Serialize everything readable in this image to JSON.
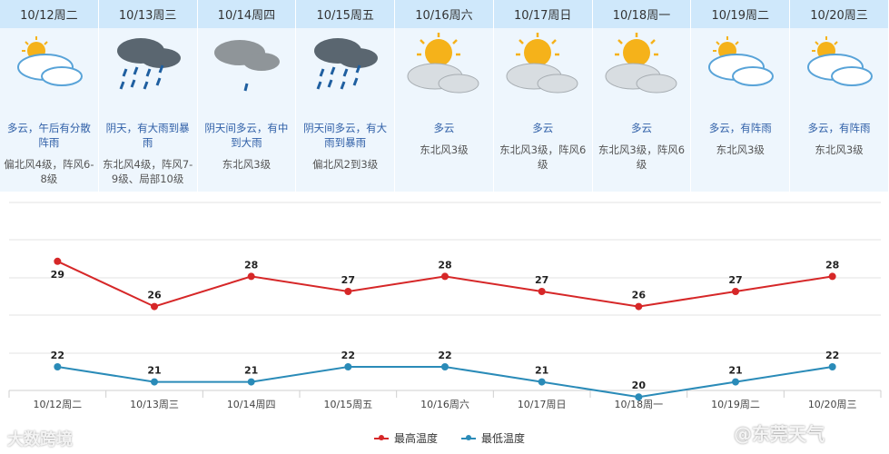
{
  "days": [
    {
      "date": "10/12周二",
      "icon": "partly-cloudy-icon",
      "desc": "多云，午后有分散阵雨",
      "wind": "偏北风4级，阵风6-8级"
    },
    {
      "date": "10/13周三",
      "icon": "heavy-rain-icon",
      "desc": "阴天，有大雨到暴雨",
      "wind": "东北风4级，阵风7-9级、局部10级"
    },
    {
      "date": "10/14周四",
      "icon": "cloudy-light-rain-icon",
      "desc": "阴天间多云，有中到大雨",
      "wind": "东北风3级"
    },
    {
      "date": "10/15周五",
      "icon": "heavy-rain-icon",
      "desc": "阴天间多云，有大雨到暴雨",
      "wind": "偏北风2到3级"
    },
    {
      "date": "10/16周六",
      "icon": "sunny-cloudy-icon",
      "desc": "多云",
      "wind": "东北风3级"
    },
    {
      "date": "10/17周日",
      "icon": "sunny-cloudy-icon",
      "desc": "多云",
      "wind": "东北风3级，阵风6级"
    },
    {
      "date": "10/18周一",
      "icon": "sunny-cloudy-icon",
      "desc": "多云",
      "wind": "东北风3级，阵风6级"
    },
    {
      "date": "10/19周二",
      "icon": "partly-cloudy-icon",
      "desc": "多云，有阵雨",
      "wind": "东北风3级"
    },
    {
      "date": "10/20周三",
      "icon": "partly-cloudy-icon",
      "desc": "多云，有阵雨",
      "wind": "东北风3级"
    }
  ],
  "chart_data": {
    "type": "line",
    "categories": [
      "10/12周二",
      "10/13周三",
      "10/14周四",
      "10/15周五",
      "10/16周六",
      "10/17周日",
      "10/18周一",
      "10/19周二",
      "10/20周三"
    ],
    "series": [
      {
        "name": "最高温度",
        "values": [
          29,
          26,
          28,
          27,
          28,
          27,
          26,
          27,
          28
        ],
        "color": "#d62728"
      },
      {
        "name": "最低温度",
        "values": [
          22,
          21,
          21,
          22,
          22,
          21,
          20,
          21,
          22
        ],
        "color": "#2a8bb8"
      }
    ],
    "grid": true,
    "legend": "bottom-center"
  },
  "watermarks": {
    "left": "大数跨境",
    "right": "@东莞天气"
  }
}
